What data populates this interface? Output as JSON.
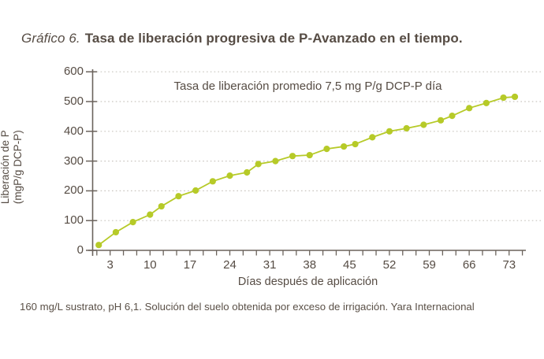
{
  "title": {
    "prefix": "Gráfico 6.",
    "text": "Tasa de liberación progresiva de P-Avanzado en el tiempo."
  },
  "footnote": "160 mg/L sustrato, pH 6,1. Solución del suelo obtenida por exceso de irrigación. Yara Internacional",
  "colors": {
    "accent_green": "#b6ca28",
    "text": "#564c44",
    "axis": "#6b635c",
    "grid": "#c9c5bf"
  },
  "chart_data": {
    "type": "line",
    "annotation": "Tasa de liberación promedio 7,5 mg P/g DCP-P día",
    "xlabel": "Días después de aplicación",
    "ylabel_line1": "Liberación de P",
    "ylabel_line2": "(mgP/g DCP-P)",
    "xlim": [
      0,
      76
    ],
    "ylim": [
      0,
      600
    ],
    "x_tick_labels": [
      3,
      10,
      17,
      24,
      31,
      38,
      45,
      52,
      59,
      66,
      73
    ],
    "x_minor_tick_step_days": 2.333,
    "y_ticks": [
      0,
      100,
      200,
      300,
      400,
      500,
      600
    ],
    "grid": "horizontal-dotted",
    "legend": "none",
    "series": [
      {
        "name": "P-Avanzado",
        "color": "#b6ca28",
        "x": [
          1,
          4,
          7,
          10,
          12,
          15,
          18,
          21,
          24,
          27,
          29,
          32,
          35,
          38,
          41,
          44,
          46,
          49,
          52,
          55,
          58,
          61,
          63,
          66,
          69,
          72,
          74
        ],
        "y": [
          18,
          61,
          95,
          120,
          148,
          182,
          201,
          232,
          251,
          262,
          290,
          300,
          317,
          320,
          341,
          349,
          357,
          380,
          400,
          410,
          422,
          437,
          452,
          478,
          495,
          513,
          516
        ]
      }
    ]
  }
}
